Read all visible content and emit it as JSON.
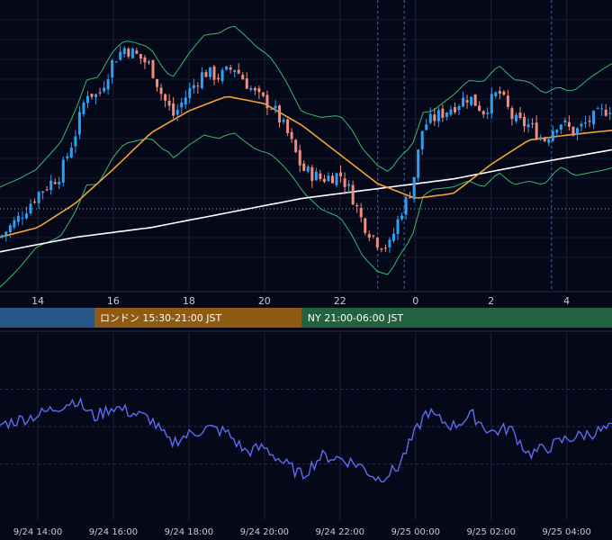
{
  "chart_data": [
    {
      "type": "candlestick",
      "panel": "price",
      "x_tick_labels": [
        "14",
        "16",
        "18",
        "20",
        "22",
        "0",
        "2",
        "4"
      ],
      "x_range_hours": [
        13.0,
        29.2
      ],
      "grid": true,
      "colors": {
        "up": "#2f9ff3",
        "down": "#f28c7d",
        "bollinger": "#3bb868",
        "ma_short": "#f3a236",
        "ma_long": "#ffffff",
        "dotted_level": "#9aa0b4"
      },
      "price_path": [
        [
          13.0,
          0.12
        ],
        [
          13.5,
          0.2
        ],
        [
          14.0,
          0.3
        ],
        [
          14.6,
          0.38
        ],
        [
          15.0,
          0.55
        ],
        [
          15.3,
          0.72
        ],
        [
          15.6,
          0.7
        ],
        [
          16.0,
          0.85
        ],
        [
          16.3,
          0.9
        ],
        [
          16.7,
          0.86
        ],
        [
          17.0,
          0.82
        ],
        [
          17.3,
          0.7
        ],
        [
          17.6,
          0.62
        ],
        [
          18.0,
          0.72
        ],
        [
          18.4,
          0.8
        ],
        [
          18.8,
          0.78
        ],
        [
          19.2,
          0.82
        ],
        [
          19.5,
          0.76
        ],
        [
          19.8,
          0.7
        ],
        [
          20.2,
          0.66
        ],
        [
          20.6,
          0.55
        ],
        [
          21.0,
          0.4
        ],
        [
          21.5,
          0.36
        ],
        [
          22.0,
          0.38
        ],
        [
          22.3,
          0.3
        ],
        [
          22.6,
          0.18
        ],
        [
          23.0,
          0.1
        ],
        [
          23.3,
          0.08
        ],
        [
          23.6,
          0.22
        ],
        [
          23.9,
          0.32
        ],
        [
          24.2,
          0.58
        ],
        [
          24.6,
          0.62
        ],
        [
          25.0,
          0.66
        ],
        [
          25.4,
          0.7
        ],
        [
          25.8,
          0.64
        ],
        [
          26.2,
          0.72
        ],
        [
          26.6,
          0.6
        ],
        [
          27.0,
          0.58
        ],
        [
          27.4,
          0.52
        ],
        [
          27.8,
          0.6
        ],
        [
          28.2,
          0.55
        ],
        [
          28.6,
          0.6
        ],
        [
          29.0,
          0.64
        ],
        [
          29.2,
          0.66
        ]
      ],
      "ma_short_path": [
        [
          13.0,
          0.12
        ],
        [
          14.0,
          0.16
        ],
        [
          15.0,
          0.26
        ],
        [
          16.0,
          0.4
        ],
        [
          17.0,
          0.55
        ],
        [
          18.0,
          0.64
        ],
        [
          19.0,
          0.7
        ],
        [
          20.0,
          0.67
        ],
        [
          21.0,
          0.58
        ],
        [
          22.0,
          0.46
        ],
        [
          23.0,
          0.34
        ],
        [
          24.0,
          0.28
        ],
        [
          25.0,
          0.3
        ],
        [
          26.0,
          0.42
        ],
        [
          27.0,
          0.52
        ],
        [
          28.0,
          0.54
        ],
        [
          29.2,
          0.56
        ]
      ],
      "ma_long_path": [
        [
          13.0,
          0.06
        ],
        [
          15.0,
          0.12
        ],
        [
          17.0,
          0.16
        ],
        [
          19.0,
          0.22
        ],
        [
          21.0,
          0.28
        ],
        [
          23.0,
          0.32
        ],
        [
          25.0,
          0.36
        ],
        [
          27.0,
          0.42
        ],
        [
          29.2,
          0.48
        ]
      ]
    },
    {
      "type": "line",
      "panel": "oscillator",
      "color": "#5c6cf0",
      "x_tick_labels": [
        "9/24 14:00",
        "9/24 16:00",
        "9/24 18:00",
        "9/24 20:00",
        "9/24 22:00",
        "9/25 00:00",
        "9/25 02:00",
        "9/25 04:00"
      ],
      "values_path": [
        [
          13.0,
          0.55
        ],
        [
          14.0,
          0.64
        ],
        [
          15.0,
          0.78
        ],
        [
          15.5,
          0.62
        ],
        [
          16.0,
          0.72
        ],
        [
          16.5,
          0.66
        ],
        [
          17.0,
          0.6
        ],
        [
          17.5,
          0.38
        ],
        [
          18.0,
          0.46
        ],
        [
          18.5,
          0.52
        ],
        [
          19.0,
          0.48
        ],
        [
          19.5,
          0.3
        ],
        [
          20.0,
          0.34
        ],
        [
          20.5,
          0.2
        ],
        [
          21.0,
          0.08
        ],
        [
          21.5,
          0.26
        ],
        [
          22.0,
          0.24
        ],
        [
          22.5,
          0.18
        ],
        [
          23.0,
          0.05
        ],
        [
          23.5,
          0.14
        ],
        [
          24.0,
          0.48
        ],
        [
          24.3,
          0.68
        ],
        [
          24.6,
          0.6
        ],
        [
          25.0,
          0.54
        ],
        [
          25.5,
          0.64
        ],
        [
          26.0,
          0.48
        ],
        [
          26.5,
          0.52
        ],
        [
          27.0,
          0.28
        ],
        [
          27.5,
          0.34
        ],
        [
          28.0,
          0.42
        ],
        [
          28.5,
          0.46
        ],
        [
          29.2,
          0.52
        ]
      ]
    }
  ],
  "sessions": [
    {
      "label": "",
      "color": "#285787",
      "start": 13.0,
      "end": 15.5
    },
    {
      "label": "ロンドン 15:30-21:00 JST",
      "color": "#8f5a12",
      "start": 15.5,
      "end": 21.0
    },
    {
      "label": "NY 21:00-06:00 JST",
      "color": "#23623f",
      "start": 21.0,
      "end": 29.2
    }
  ]
}
